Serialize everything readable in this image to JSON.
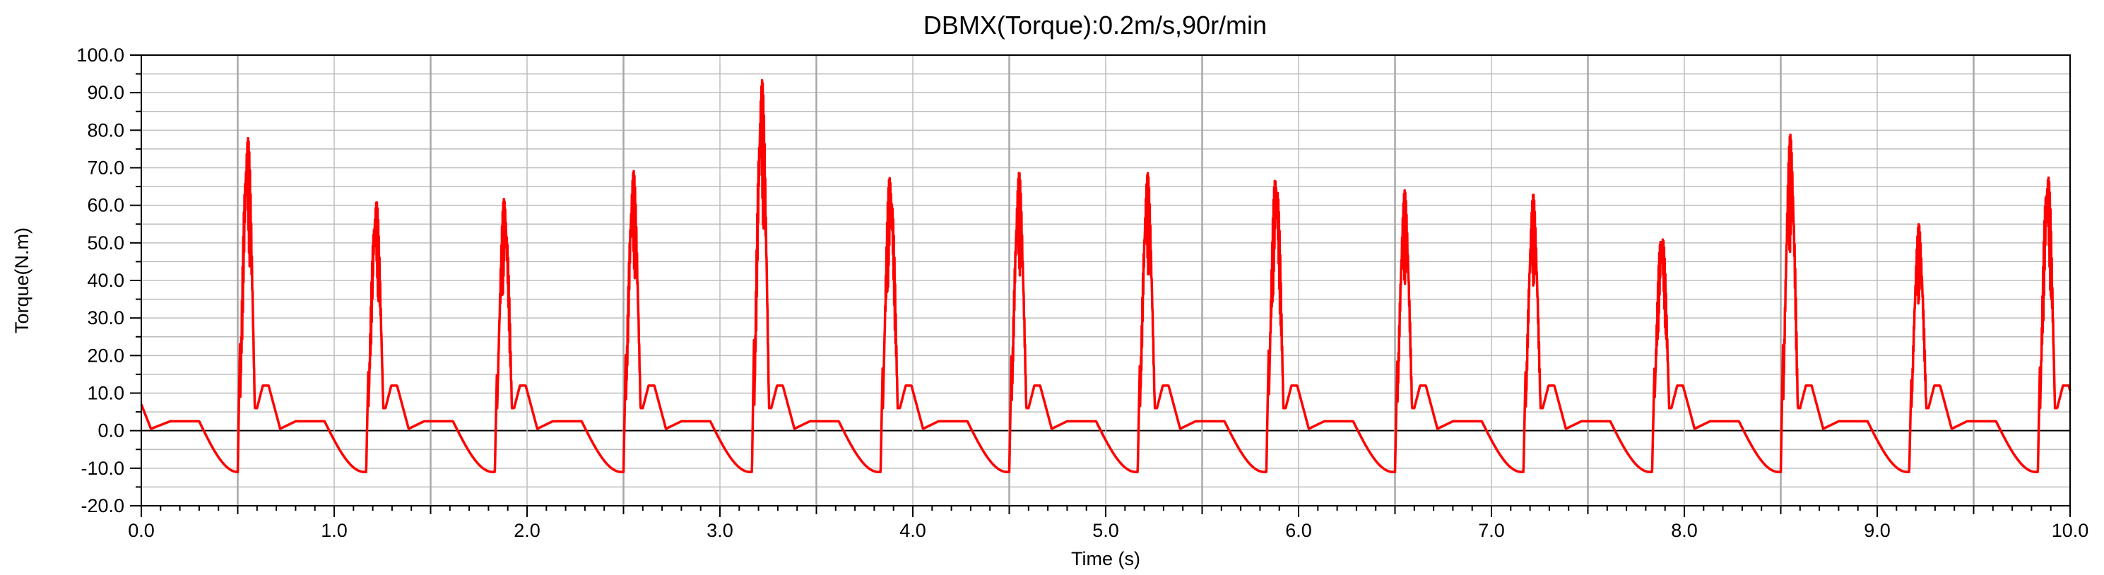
{
  "chart_data": {
    "type": "line",
    "title": "DBMX(Torque):0.2m/s,90r/min",
    "xlabel": "Time (s)",
    "ylabel": "Torque(N.m)",
    "xlim": [
      0,
      10
    ],
    "ylim": [
      -20,
      100
    ],
    "x_ticks": [
      "0.0",
      "1.0",
      "2.0",
      "3.0",
      "4.0",
      "5.0",
      "6.0",
      "7.0",
      "8.0",
      "9.0",
      "10.0"
    ],
    "y_ticks": [
      "100.0",
      "90.0",
      "80.0",
      "70.0",
      "60.0",
      "50.0",
      "40.0",
      "30.0",
      "20.0",
      "10.0",
      "0.0",
      "-10.0",
      "-20.0"
    ],
    "grid": true,
    "series": [
      {
        "color": "#ff0000",
        "period_s": 0.666,
        "cycle_starts_s": [
          0.0,
          0.5,
          1.166,
          1.833,
          2.5,
          3.166,
          3.833,
          4.5,
          5.166,
          5.833,
          6.5,
          7.166,
          7.833,
          8.5,
          9.166,
          9.833
        ],
        "peak_values": [
          7,
          80,
          63,
          63,
          70,
          95,
          70,
          69,
          69,
          71,
          64,
          63,
          55,
          79,
          55,
          71
        ],
        "trough_value": -11,
        "baseline_value": 2.5,
        "secondary_bump_value": 12
      }
    ]
  }
}
